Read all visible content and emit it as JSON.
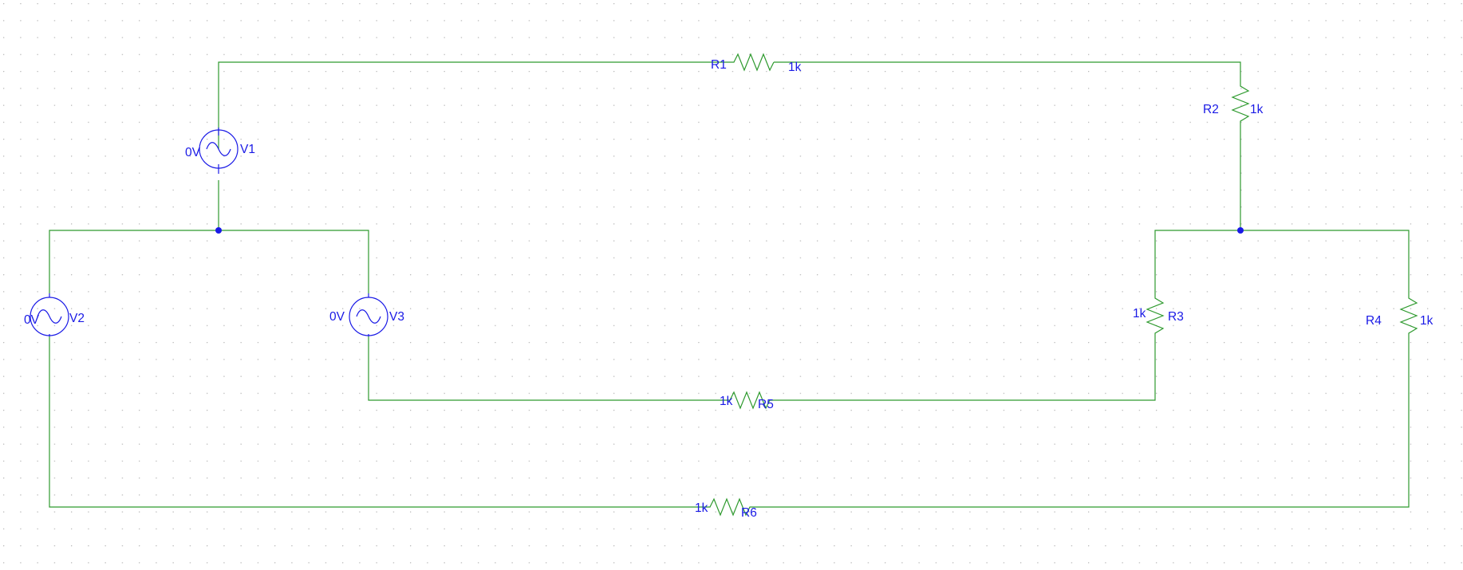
{
  "colors": {
    "wire": "#2e9a2e",
    "component": "#1a1ae6",
    "grid_dot": "#b8b8b8",
    "background": "#ffffff"
  },
  "components": {
    "V1": {
      "name": "V1",
      "value": "0V"
    },
    "V2": {
      "name": "V2",
      "value": "0V"
    },
    "V3": {
      "name": "V3",
      "value": "0V"
    },
    "R1": {
      "name": "R1",
      "value": "1k"
    },
    "R2": {
      "name": "R2",
      "value": "1k"
    },
    "R3": {
      "name": "R3",
      "value": "1k"
    },
    "R4": {
      "name": "R4",
      "value": "1k"
    },
    "R5": {
      "name": "R5",
      "value": "1k"
    },
    "R6": {
      "name": "R6",
      "value": "1k"
    }
  }
}
